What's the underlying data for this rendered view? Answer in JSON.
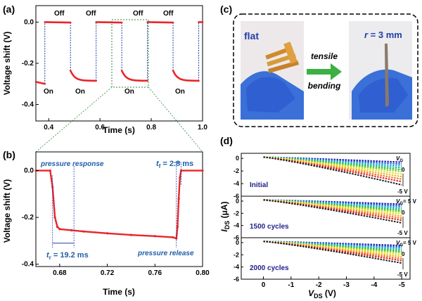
{
  "panel_labels": {
    "a": "(a)",
    "b": "(b)",
    "c": "(c)",
    "d": "(d)"
  },
  "colors": {
    "series": "#e8262a",
    "dashed": "#1f3fa8",
    "annotation": "#1f5fa8",
    "zoom": "#2d8a3a",
    "arrow": "#3cb043"
  },
  "chart_data": [
    {
      "id": "a",
      "type": "line",
      "title": "",
      "xlabel": "Time (s)",
      "ylabel": "Voltage shift (V)",
      "xlim": [
        0.35,
        1.0
      ],
      "ylim": [
        -0.48,
        0.08
      ],
      "xticks": [
        "0.4",
        "0.6",
        "0.8",
        "1.0"
      ],
      "yticks": [
        "0.0",
        "-0.2",
        "-0.4"
      ],
      "state_labels": [
        "Off",
        "Off",
        "Off",
        "Off",
        "On",
        "On",
        "On",
        "On"
      ],
      "series": [
        {
          "name": "voltage shift",
          "segments": [
            {
              "state": "on",
              "x": [
                0.35,
                0.385
              ],
              "y": [
                -0.29,
                -0.3
              ]
            },
            {
              "state": "off",
              "x": [
                0.385,
                0.485
              ],
              "y": [
                0.0,
                -0.002
              ]
            },
            {
              "state": "on",
              "x": [
                0.485,
                0.585
              ],
              "y": [
                -0.235,
                -0.285
              ]
            },
            {
              "state": "off",
              "x": [
                0.585,
                0.685
              ],
              "y": [
                0.0,
                -0.002
              ]
            },
            {
              "state": "on",
              "x": [
                0.685,
                0.785
              ],
              "y": [
                -0.235,
                -0.285
              ]
            },
            {
              "state": "off",
              "x": [
                0.785,
                0.885
              ],
              "y": [
                0.0,
                -0.002
              ]
            },
            {
              "state": "on",
              "x": [
                0.885,
                0.985
              ],
              "y": [
                -0.235,
                -0.285
              ]
            },
            {
              "state": "off",
              "x": [
                0.985,
                1.0
              ],
              "y": [
                0.0,
                0.0
              ]
            }
          ]
        }
      ],
      "zoom_window": {
        "x": [
          0.67,
          0.8
        ],
        "y": [
          -0.32,
          0.02
        ]
      }
    },
    {
      "id": "b",
      "type": "line",
      "xlabel": "Time (s)",
      "ylabel": "Voltage shift (V)",
      "xlim": [
        0.66,
        0.8
      ],
      "ylim": [
        -0.41,
        0.08
      ],
      "xticks": [
        "0.68",
        "0.72",
        "0.76",
        "0.80"
      ],
      "yticks": [
        "0.0",
        "-0.2",
        "-0.4"
      ],
      "x": [
        0.66,
        0.672,
        0.674,
        0.676,
        0.678,
        0.68,
        0.69,
        0.7,
        0.72,
        0.74,
        0.76,
        0.775,
        0.778,
        0.779,
        0.78,
        0.781,
        0.782,
        0.8
      ],
      "values": [
        0.0,
        0.0,
        -0.07,
        -0.2,
        -0.24,
        -0.25,
        -0.255,
        -0.26,
        -0.268,
        -0.275,
        -0.28,
        -0.285,
        -0.29,
        -0.24,
        -0.12,
        -0.03,
        0.0,
        0.0
      ],
      "annotations": {
        "response_label": "pressure response",
        "release_label": "pressure release",
        "tr_symbol": "t",
        "tr_sub": "r",
        "tr_value": " = 19.2 ms",
        "tf_symbol": "t",
        "tf_sub": "f",
        "tf_value": " = 2.8 ms"
      }
    },
    {
      "id": "d",
      "type": "line",
      "xlabel_main": "V",
      "xlabel_sub": "DS",
      "xlabel_unit": " (V)",
      "ylabel_main": "I",
      "ylabel_sub": "DS",
      "ylabel_unit": " (μA)",
      "xlim": [
        0.8,
        -5.3
      ],
      "xticks": [
        "0",
        "-1",
        "-2",
        "-3",
        "-4",
        "-5"
      ],
      "subplots": [
        {
          "label": "Initial",
          "ylim": [
            -6,
            0.8
          ],
          "yticks": [
            "0",
            "-2",
            "-4",
            "-6"
          ]
        },
        {
          "label": "1500 cycles",
          "ylim": [
            -6,
            0.8
          ],
          "yticks": [
            "0",
            "-2",
            "-4",
            "-6"
          ]
        },
        {
          "label": "2000 cycles",
          "ylim": [
            -6,
            0.8
          ],
          "yticks": [
            "0",
            "-2",
            "-4",
            "-6"
          ]
        }
      ],
      "vg_label": "V",
      "vg_sub": "G",
      "vg_top": "= 5 V",
      "vg_mid": "0",
      "vg_bottom": "-5 V",
      "series_count": 11,
      "series_vg": [
        5,
        4,
        3,
        2,
        1,
        0,
        -1,
        -2,
        -3,
        -4,
        -5
      ],
      "series_end_current": [
        -0.6,
        -0.9,
        -1.2,
        -1.5,
        -1.8,
        -2.1,
        -2.5,
        -2.9,
        -3.3,
        -3.7,
        -4.2
      ],
      "series_colors": [
        "#1f1fa8",
        "#2f5fd8",
        "#2fa8e0",
        "#20c0a0",
        "#30c040",
        "#90d020",
        "#e0e020",
        "#f0b020",
        "#f07020",
        "#e02020",
        "#202020"
      ]
    }
  ],
  "panel_c": {
    "flat_label": "flat",
    "radius_symbol": "r",
    "radius_value": " = 3 mm",
    "arrow_top": "tensile",
    "arrow_bottom": "bending"
  }
}
